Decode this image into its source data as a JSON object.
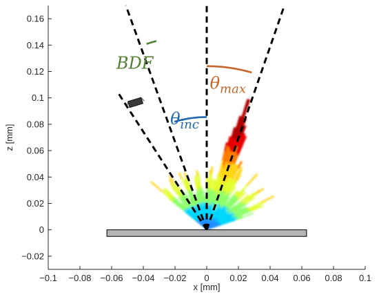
{
  "chart_data": {
    "type": "scatter",
    "xlabel": "x [mm]",
    "ylabel": "z [mm]",
    "xlim": [
      -0.1,
      0.1
    ],
    "ylim": [
      -0.03,
      0.17
    ],
    "x_ticks": [
      -0.1,
      -0.08,
      -0.06,
      -0.04,
      -0.02,
      0,
      0.02,
      0.04,
      0.06,
      0.08,
      0.1
    ],
    "x_tick_labels": [
      "−0.1",
      "−0.08",
      "−0.06",
      "−0.04",
      "−0.02",
      "0",
      "0.02",
      "0.04",
      "0.06",
      "0.08",
      "0.1"
    ],
    "y_ticks": [
      -0.02,
      0,
      0.02,
      0.04,
      0.06,
      0.08,
      0.1,
      0.12,
      0.14,
      0.16
    ],
    "y_tick_labels": [
      "−0.02",
      "0",
      "0.02",
      "0.04",
      "0.06",
      "0.08",
      "0.1",
      "0.12",
      "0.14",
      "0.16"
    ],
    "grid": false,
    "substrate": {
      "x_range": [
        -0.063,
        0.063
      ],
      "z_range": [
        -0.005,
        0
      ]
    },
    "dashed_lines": [
      {
        "name": "vertical",
        "from": [
          0,
          0
        ],
        "to": [
          0,
          0.17
        ]
      },
      {
        "name": "incidence-left",
        "from": [
          0,
          0
        ],
        "to": [
          -0.051,
          0.17
        ]
      },
      {
        "name": "detector-left",
        "from": [
          0,
          0
        ],
        "to": [
          -0.056,
          0.104
        ]
      },
      {
        "name": "max-right",
        "from": [
          0,
          0
        ],
        "to": [
          0.049,
          0.17
        ]
      }
    ],
    "annotations": [
      {
        "role": "bdf",
        "base": "BDF",
        "sub": "",
        "color": "#4f7f2f",
        "pos": [
          -0.057,
          0.122
        ]
      },
      {
        "role": "theta-max",
        "base": "θ",
        "sub": "max",
        "color": "#c4652a",
        "pos": [
          0.002,
          0.107
        ]
      },
      {
        "role": "theta-inc",
        "base": "θ",
        "sub": "inc",
        "color": "#2169b3",
        "pos": [
          -0.023,
          0.08
        ]
      }
    ],
    "arcs": [
      {
        "role": "bdf-arc",
        "color": "#4f7f2f",
        "radius": 0.123,
        "from_deg": -18,
        "to_deg": -15
      },
      {
        "role": "max-arc",
        "color": "#c4652a",
        "radius": 0.103,
        "from_deg": 0,
        "to_deg": 16
      },
      {
        "role": "inc-arc",
        "color": "#2169b3",
        "radius": 0.071,
        "from_deg": -16.7,
        "to_deg": 0
      }
    ],
    "lobe": {
      "colormap": [
        "#1e90ff",
        "#00d7ff",
        "#8dff6a",
        "#e2ff2e",
        "#ffd51a",
        "#ff7a00",
        "#e60000",
        "#b20000"
      ],
      "peak_angle_deg": 16,
      "peak_radius": 0.088
    }
  }
}
